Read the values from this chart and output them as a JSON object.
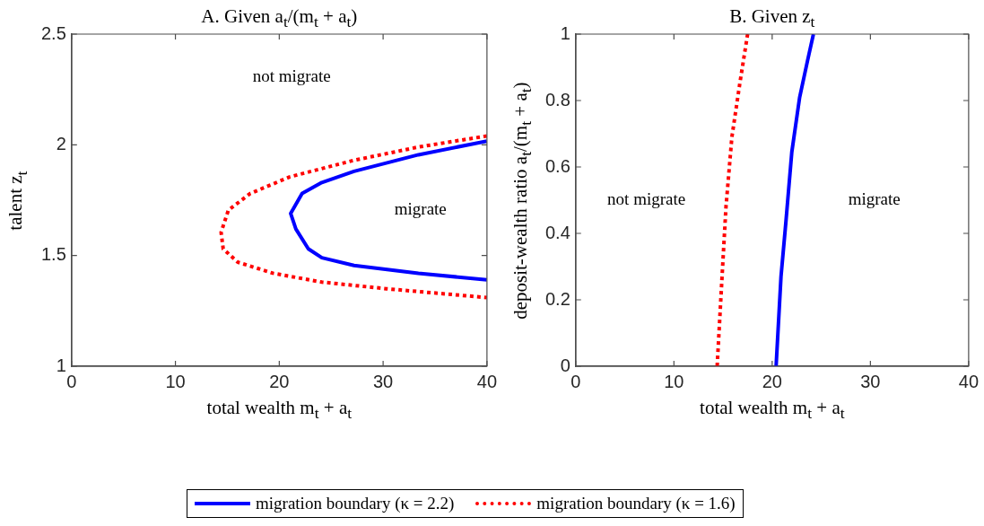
{
  "chart_data": [
    {
      "type": "line",
      "title": "A. Given a$_{t}$/(m$_{t}$ + a$_{t}$)",
      "xlabel": "total wealth m$_{t}$ + a$_{t}$",
      "ylabel": "talent z$_{t}$",
      "xlim": [
        0,
        40
      ],
      "xticks": [
        0,
        10,
        20,
        30,
        40
      ],
      "ylim": [
        1,
        2.5
      ],
      "yticks": [
        1,
        1.5,
        2,
        2.5
      ],
      "grid": false,
      "legend": "bottom",
      "marker": "none",
      "series": [
        {
          "name": "migration boundary (κ = 2.2)",
          "color": "#0000ff",
          "line_style": "solid",
          "x": [
            40,
            33.4,
            27.2,
            24.1,
            22.2,
            21.1,
            21.6,
            22.8,
            24.1,
            27.2,
            33.4,
            40
          ],
          "values": [
            2.017,
            1.955,
            1.88,
            1.83,
            1.78,
            1.69,
            1.62,
            1.53,
            1.49,
            1.455,
            1.42,
            1.39
          ]
        },
        {
          "name": "migration boundary (κ = 1.6)",
          "color": "#ff0000",
          "line_style": "dotted",
          "x": [
            40,
            33.4,
            27.2,
            21,
            17.2,
            15.1,
            14.4,
            14.6,
            16,
            19.4,
            24.1,
            30.3,
            40
          ],
          "values": [
            2.04,
            1.99,
            1.93,
            1.855,
            1.78,
            1.705,
            1.605,
            1.53,
            1.47,
            1.42,
            1.38,
            1.35,
            1.31
          ]
        }
      ],
      "annotations": [
        "not migrate",
        "migrate"
      ]
    },
    {
      "type": "line",
      "title": "B. Given z$_{t}$",
      "xlabel": "total wealth m$_{t}$ + a$_{t}$",
      "ylabel": "deposit-wealth ratio a$_{t}$/(m$_{t}$ + a$_{t}$)",
      "xlim": [
        0,
        40
      ],
      "xticks": [
        0,
        10,
        20,
        30,
        40
      ],
      "ylim": [
        0,
        1
      ],
      "yticks": [
        0,
        0.2,
        0.4,
        0.6,
        0.8,
        1
      ],
      "grid": false,
      "marker": "none",
      "series": [
        {
          "color": "#0000ff",
          "line_style": "solid",
          "x": [
            20.4,
            20.9,
            21.4,
            22,
            22.8,
            23.6,
            24.2
          ],
          "values": [
            0,
            0.27,
            0.435,
            0.645,
            0.81,
            0.92,
            1
          ]
        },
        {
          "color": "#ff0000",
          "line_style": "dotted",
          "x": [
            14.4,
            14.9,
            15.3,
            15.9,
            16.7,
            17.5
          ],
          "values": [
            0,
            0.27,
            0.48,
            0.69,
            0.85,
            1
          ]
        }
      ],
      "annotations": [
        "not migrate",
        "migrate"
      ]
    }
  ]
}
